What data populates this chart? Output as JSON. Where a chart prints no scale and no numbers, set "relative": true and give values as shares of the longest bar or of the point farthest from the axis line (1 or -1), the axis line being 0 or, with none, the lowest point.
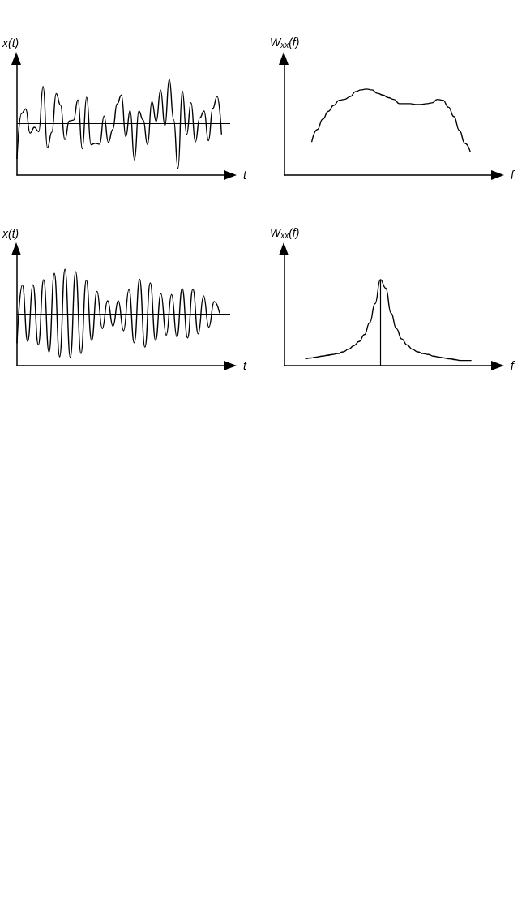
{
  "chart_data": [
    {
      "type": "line",
      "relative": true,
      "ylabel": "x(t)",
      "xlabel": "t",
      "marker": "none",
      "line_style": "solid",
      "ref_lines": [
        {
          "axis": "y",
          "value": 0
        }
      ],
      "categories": [
        null,
        null,
        null,
        null,
        null,
        null,
        null,
        null,
        null,
        null,
        null,
        null,
        null,
        null,
        null,
        null,
        null,
        null,
        null,
        null,
        null,
        null,
        null,
        null,
        null,
        null,
        null,
        null,
        null,
        null,
        null,
        null,
        null,
        null,
        null,
        null,
        null,
        null,
        null,
        null,
        null,
        null,
        null,
        null,
        null,
        null,
        null,
        null,
        null,
        null
      ],
      "series": [
        {
          "color": "#000000",
          "values": [
            -0.78,
            0.22,
            0.33,
            -0.21,
            -0.08,
            -0.18,
            0.83,
            -0.54,
            -0.19,
            0.67,
            0.41,
            -0.36,
            0.06,
            0.08,
            0.53,
            -0.56,
            0.59,
            -0.47,
            -0.44,
            -0.46,
            0.17,
            -0.42,
            -0.13,
            0.44,
            0.64,
            -0.29,
            0.29,
            -0.81,
            0.28,
            0.08,
            -0.47,
            0.49,
            0.05,
            0.75,
            -0.05,
            0.99,
            0.09,
            -1,
            0.73,
            -0.24,
            0.47,
            -0.41,
            0.13,
            0.28,
            -0.38,
            0.34,
            0.61,
            -0.23,
            null,
            null
          ]
        }
      ]
    },
    {
      "type": "line",
      "relative": true,
      "ylabel": "W$_{xx}$(f)",
      "xlabel": "f",
      "marker": "none",
      "line_style": "solid",
      "categories": [
        null,
        null,
        null,
        null,
        null,
        null,
        null,
        null,
        null,
        null,
        null,
        null,
        null,
        null,
        null,
        null,
        null,
        null,
        null,
        null,
        null,
        null,
        null,
        null,
        null,
        null,
        null,
        null,
        null,
        null,
        null,
        null,
        null,
        null,
        null,
        null,
        null,
        null,
        null,
        null
      ],
      "series": [
        {
          "color": "#000000",
          "values": [
            null,
            null,
            null,
            null,
            null,
            0.39,
            0.53,
            0.65,
            0.74,
            0.81,
            0.87,
            0.88,
            0.91,
            0.97,
            0.99,
            1,
            0.99,
            0.95,
            0.93,
            0.9,
            0.88,
            0.83,
            0.83,
            0.83,
            0.82,
            0.82,
            0.83,
            0.84,
            0.88,
            0.87,
            0.79,
            0.68,
            0.52,
            0.37,
            0.27,
            null,
            null,
            null,
            null,
            null
          ]
        }
      ]
    },
    {
      "type": "line",
      "relative": true,
      "ylabel": "x(t)",
      "xlabel": "t",
      "marker": "none",
      "line_style": "solid",
      "ref_lines": [
        {
          "axis": "y",
          "value": 0
        }
      ],
      "categories": [
        null,
        null,
        null,
        null,
        null,
        null,
        null,
        null,
        null,
        null,
        null,
        null,
        null,
        null,
        null,
        null,
        null,
        null,
        null,
        null,
        null,
        null,
        null,
        null,
        null,
        null,
        null,
        null,
        null,
        null,
        null,
        null,
        null,
        null,
        null,
        null,
        null,
        null,
        null,
        null,
        null
      ],
      "series": [
        {
          "color": "#000000",
          "values": [
            -0.64,
            0.65,
            -0.61,
            0.66,
            -0.69,
            0.77,
            -0.85,
            0.91,
            -0.95,
            1,
            -0.97,
            0.95,
            -0.88,
            0.76,
            -0.59,
            0.51,
            -0.32,
            0.3,
            -0.27,
            0.3,
            -0.37,
            0.55,
            -0.64,
            0.78,
            -0.74,
            0.7,
            -0.59,
            0.46,
            -0.47,
            0.44,
            -0.51,
            0.57,
            -0.53,
            0.56,
            -0.44,
            0.41,
            -0.29,
            0.28,
            0.03,
            null,
            null
          ]
        }
      ]
    },
    {
      "type": "line",
      "relative": true,
      "ylabel": "W$_{xx}$(f)",
      "xlabel": "f",
      "marker": "none",
      "line_style": "solid",
      "categories": [
        null,
        null,
        null,
        null,
        null,
        null,
        null,
        null,
        null,
        null,
        null,
        null,
        null,
        null,
        null,
        null,
        null,
        null,
        null,
        null,
        null,
        null,
        null,
        null,
        null,
        null,
        null,
        null,
        null,
        null,
        null,
        null,
        null,
        null,
        null,
        null,
        null,
        null,
        null,
        null,
        null
      ],
      "series": [
        {
          "color": "#000000",
          "values": [
            null,
            null,
            null,
            null,
            0.08,
            0.09,
            0.1,
            0.11,
            0.12,
            0.13,
            0.14,
            0.16,
            0.19,
            0.23,
            0.28,
            0.36,
            0.5,
            0.72,
            1,
            0.9,
            0.61,
            0.43,
            0.31,
            0.24,
            0.19,
            0.16,
            0.14,
            0.13,
            0.11,
            0.1,
            0.09,
            0.08,
            0.07,
            0.06,
            0.06,
            0.06,
            null,
            null,
            null,
            null,
            null
          ]
        }
      ]
    }
  ]
}
